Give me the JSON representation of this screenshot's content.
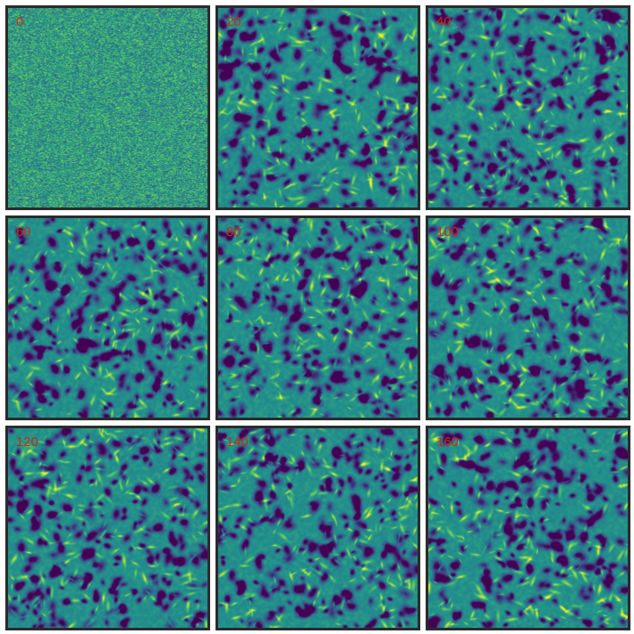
{
  "panels": [
    {
      "label": "0",
      "state": "noise"
    },
    {
      "label": "20",
      "state": "pattern"
    },
    {
      "label": "40",
      "state": "pattern"
    },
    {
      "label": "60",
      "state": "pattern"
    },
    {
      "label": "80",
      "state": "pattern"
    },
    {
      "label": "100",
      "state": "pattern"
    },
    {
      "label": "120",
      "state": "pattern"
    },
    {
      "label": "140",
      "state": "pattern"
    },
    {
      "label": "160",
      "state": "pattern"
    }
  ],
  "colormap": [
    "#440154",
    "#3b528b",
    "#21918c",
    "#5ec962",
    "#fde725"
  ],
  "label_color": "#cc2a0e",
  "border_color": "#2b2b2b"
}
